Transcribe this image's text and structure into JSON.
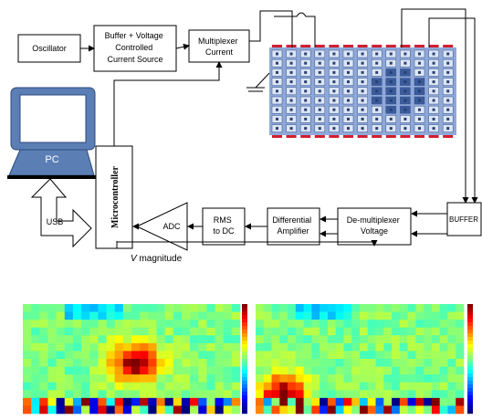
{
  "oscillator": {
    "label": "Oscillator"
  },
  "buffer_source": {
    "lines": [
      "Buffer + Voltage",
      "Controlled",
      "Current Source"
    ]
  },
  "multiplexer": {
    "lines": [
      "Multiplexer",
      "Current"
    ]
  },
  "pc": {
    "label": "PC"
  },
  "usb": {
    "label": "USB"
  },
  "microcontroller": {
    "label": "Microcontroller"
  },
  "adc": {
    "label": "ADC"
  },
  "rms": {
    "lines": [
      "RMS",
      "to DC"
    ]
  },
  "diff_amp": {
    "lines": [
      "Differential",
      "Amplifier"
    ]
  },
  "demux": {
    "lines": [
      "De-multiplexer",
      "Voltage"
    ]
  },
  "buffer": {
    "label": "BUFFER"
  },
  "v_magnitude": {
    "symbol": "V",
    "label": "magnitude"
  }
}
